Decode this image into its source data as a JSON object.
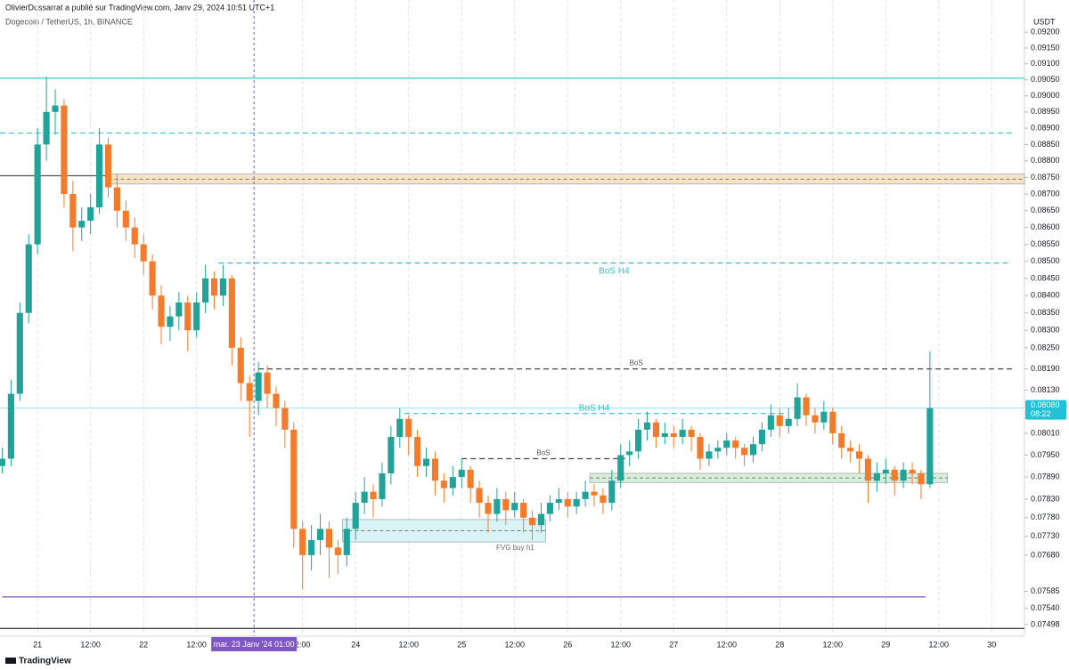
{
  "header": {
    "publisher": "OlivierDussarrat a publié sur TradingView.com, Janv 29, 2024 10:51 UTC+1",
    "symbol": "Dogecoin / TetherUS, 1h, BINANCE",
    "currency": "USDT",
    "brand": "TradingView"
  },
  "chart_data": {
    "type": "candlestick",
    "log": true,
    "xgrid": true,
    "ygrid": false,
    "up_color": "#22a39a",
    "down_color": "#f47b2b",
    "xlim": [
      -8.5,
      223.4
    ],
    "ylim": [
      0.07468,
      0.0926
    ],
    "xticks": [
      {
        "value": 0,
        "label": "21"
      },
      {
        "value": 12,
        "label": "12:00"
      },
      {
        "value": 24,
        "label": "22"
      },
      {
        "value": 36,
        "label": "12:00"
      },
      {
        "value": 60,
        "label": "2:00"
      },
      {
        "value": 72,
        "label": "24"
      },
      {
        "value": 84,
        "label": "12:00"
      },
      {
        "value": 96,
        "label": "25"
      },
      {
        "value": 108,
        "label": "12:00"
      },
      {
        "value": 120,
        "label": "26"
      },
      {
        "value": 132,
        "label": "12:00"
      },
      {
        "value": 144,
        "label": "27"
      },
      {
        "value": 156,
        "label": "12:00"
      },
      {
        "value": 168,
        "label": "28"
      },
      {
        "value": 180,
        "label": "12:00"
      },
      {
        "value": 192,
        "label": "29"
      },
      {
        "value": 204,
        "label": "12:00"
      },
      {
        "value": 216,
        "label": "30"
      }
    ],
    "crosshair": {
      "value": 49,
      "label": "mar. 23 Janv '24   01:00"
    },
    "yticks": [
      {
        "value": 0.092,
        "label": "0.09200"
      },
      {
        "value": 0.0915,
        "label": "0.09150"
      },
      {
        "value": 0.091,
        "label": "0.09100"
      },
      {
        "value": 0.0905,
        "label": "0.09050"
      },
      {
        "value": 0.09,
        "label": "0.09000"
      },
      {
        "value": 0.0895,
        "label": "0.08950"
      },
      {
        "value": 0.089,
        "label": "0.08900"
      },
      {
        "value": 0.0885,
        "label": "0.08850"
      },
      {
        "value": 0.088,
        "label": "0.08800"
      },
      {
        "value": 0.0875,
        "label": "0.08750"
      },
      {
        "value": 0.087,
        "label": "0.08700"
      },
      {
        "value": 0.0865,
        "label": "0.08650"
      },
      {
        "value": 0.086,
        "label": "0.08600"
      },
      {
        "value": 0.0855,
        "label": "0.08550"
      },
      {
        "value": 0.085,
        "label": "0.08500"
      },
      {
        "value": 0.0845,
        "label": "0.08450"
      },
      {
        "value": 0.084,
        "label": "0.08400"
      },
      {
        "value": 0.0835,
        "label": "0.08350"
      },
      {
        "value": 0.083,
        "label": "0.08300"
      },
      {
        "value": 0.0825,
        "label": "0.08250"
      },
      {
        "value": 0.0819,
        "label": "0.08190"
      },
      {
        "value": 0.0813,
        "label": "0.08130"
      },
      {
        "value": 0.0801,
        "label": "0.08010"
      },
      {
        "value": 0.0795,
        "label": "0.07950"
      },
      {
        "value": 0.0789,
        "label": "0.07890"
      },
      {
        "value": 0.0783,
        "label": "0.07830"
      },
      {
        "value": 0.0778,
        "label": "0.07780"
      },
      {
        "value": 0.0773,
        "label": "0.07730"
      },
      {
        "value": 0.0768,
        "label": "0.07680"
      },
      {
        "value": 0.07585,
        "label": "0.07585"
      },
      {
        "value": 0.0754,
        "label": "0.07540"
      },
      {
        "value": 0.07498,
        "label": "0.07498"
      }
    ],
    "last_price": {
      "value": 0.0808,
      "label": "0.08080",
      "countdown": "08:22",
      "color": "#22c1d6"
    },
    "levels": [
      {
        "kind": "line",
        "value": 0.09055,
        "style": "solid",
        "color": "#3cc8d6"
      },
      {
        "kind": "line",
        "value": 0.08885,
        "style": "dashed",
        "color": "#3cc8d6",
        "end": 221
      },
      {
        "kind": "line",
        "value": 0.08755,
        "style": "solid",
        "color": "#555555"
      },
      {
        "kind": "zone",
        "low": 0.0873,
        "high": 0.0876,
        "start": 16,
        "color": "#f5e3c8"
      },
      {
        "kind": "line",
        "value": 0.08495,
        "style": "dashed",
        "color": "#2bbfd4",
        "start": 41,
        "end": 220,
        "label": "BoS H4",
        "label_side": "below"
      },
      {
        "kind": "line",
        "value": 0.0819,
        "style": "dashed",
        "color": "#444444",
        "start": 50,
        "end": 221,
        "label": "BoS",
        "label_side": "above"
      },
      {
        "kind": "line",
        "value": 0.0808,
        "style": "solid",
        "color": "#a8e6ee"
      },
      {
        "kind": "line",
        "value": 0.08065,
        "style": "dashed",
        "color": "#2bbfd4",
        "start": 83,
        "end": 169,
        "label": "BoS H4",
        "label_side": "above"
      },
      {
        "kind": "line",
        "value": 0.0794,
        "style": "dashed",
        "color": "#444444",
        "start": 96,
        "end": 133,
        "label": "BoS",
        "label_side": "above"
      },
      {
        "kind": "zone",
        "low": 0.07715,
        "high": 0.07775,
        "start": 69,
        "end": 115,
        "color": "#d9f3f6",
        "label": "FVG buy h1"
      },
      {
        "kind": "zone",
        "low": 0.07875,
        "high": 0.079,
        "start": 125,
        "end": 206,
        "color": "#d7eedb"
      },
      {
        "kind": "line",
        "value": 0.0757,
        "style": "solid",
        "color": "#7e57c2",
        "start": -8,
        "end": 201
      },
      {
        "kind": "line",
        "value": 0.07488,
        "style": "solid",
        "color": "#444444"
      }
    ],
    "x": [
      -8,
      -6,
      -4,
      -2,
      0,
      2,
      4,
      6,
      8,
      10,
      12,
      14,
      16,
      18,
      20,
      22,
      24,
      26,
      28,
      30,
      32,
      34,
      36,
      38,
      40,
      42,
      44,
      46,
      48,
      50,
      52,
      54,
      56,
      58,
      60,
      62,
      64,
      66,
      68,
      70,
      72,
      74,
      76,
      78,
      80,
      82,
      84,
      86,
      88,
      90,
      92,
      94,
      96,
      98,
      100,
      102,
      104,
      106,
      108,
      110,
      112,
      114,
      116,
      118,
      120,
      122,
      124,
      126,
      128,
      130,
      132,
      134,
      136,
      138,
      140,
      142,
      144,
      146,
      148,
      150,
      152,
      154,
      156,
      158,
      160,
      162,
      164,
      166,
      168,
      170,
      172,
      174,
      176,
      178,
      180,
      182,
      184,
      186,
      188,
      190,
      192,
      194,
      196,
      198,
      200,
      202
    ],
    "ohlc": [
      [
        0.0792,
        0.0797,
        0.079,
        0.0794
      ],
      [
        0.0794,
        0.0816,
        0.0792,
        0.0812
      ],
      [
        0.0812,
        0.0838,
        0.081,
        0.0835
      ],
      [
        0.0835,
        0.0858,
        0.0832,
        0.0855
      ],
      [
        0.0855,
        0.089,
        0.0852,
        0.0885
      ],
      [
        0.0885,
        0.0906,
        0.088,
        0.0895
      ],
      [
        0.0895,
        0.0902,
        0.0888,
        0.0897
      ],
      [
        0.0897,
        0.0899,
        0.0866,
        0.087
      ],
      [
        0.087,
        0.0874,
        0.0853,
        0.086
      ],
      [
        0.086,
        0.0866,
        0.0856,
        0.0862
      ],
      [
        0.0862,
        0.087,
        0.0858,
        0.0866
      ],
      [
        0.0866,
        0.089,
        0.0864,
        0.0885
      ],
      [
        0.0885,
        0.0887,
        0.0869,
        0.0872
      ],
      [
        0.0872,
        0.0876,
        0.086,
        0.0865
      ],
      [
        0.0865,
        0.0868,
        0.0856,
        0.086
      ],
      [
        0.086,
        0.0863,
        0.0851,
        0.0855
      ],
      [
        0.0855,
        0.0858,
        0.0846,
        0.085
      ],
      [
        0.085,
        0.0852,
        0.0836,
        0.084
      ],
      [
        0.084,
        0.0843,
        0.0826,
        0.0831
      ],
      [
        0.0831,
        0.0837,
        0.0827,
        0.0834
      ],
      [
        0.0834,
        0.0841,
        0.083,
        0.0838
      ],
      [
        0.0838,
        0.084,
        0.0824,
        0.083
      ],
      [
        0.083,
        0.0841,
        0.0828,
        0.0838
      ],
      [
        0.0838,
        0.0849,
        0.0835,
        0.0845
      ],
      [
        0.0845,
        0.0847,
        0.0836,
        0.084
      ],
      [
        0.084,
        0.0849,
        0.0837,
        0.0845
      ],
      [
        0.0845,
        0.0846,
        0.082,
        0.0825
      ],
      [
        0.0825,
        0.0828,
        0.081,
        0.0815
      ],
      [
        0.0815,
        0.0817,
        0.08,
        0.081
      ],
      [
        0.081,
        0.0821,
        0.0806,
        0.0818
      ],
      [
        0.0818,
        0.082,
        0.0808,
        0.0812
      ],
      [
        0.0812,
        0.0814,
        0.0803,
        0.0808
      ],
      [
        0.0808,
        0.081,
        0.0797,
        0.0802
      ],
      [
        0.0802,
        0.0804,
        0.077,
        0.0775
      ],
      [
        0.0775,
        0.0777,
        0.0759,
        0.0768
      ],
      [
        0.0768,
        0.0776,
        0.0764,
        0.0772
      ],
      [
        0.0772,
        0.0779,
        0.0768,
        0.0775
      ],
      [
        0.0775,
        0.0777,
        0.0762,
        0.077
      ],
      [
        0.077,
        0.0772,
        0.0763,
        0.0768
      ],
      [
        0.0768,
        0.0778,
        0.0765,
        0.0775
      ],
      [
        0.0775,
        0.0785,
        0.0772,
        0.0782
      ],
      [
        0.0782,
        0.0789,
        0.0779,
        0.0785
      ],
      [
        0.0785,
        0.0787,
        0.0778,
        0.0783
      ],
      [
        0.0783,
        0.0793,
        0.0781,
        0.079
      ],
      [
        0.079,
        0.0803,
        0.0787,
        0.08
      ],
      [
        0.08,
        0.0808,
        0.0797,
        0.0805
      ],
      [
        0.0805,
        0.0806,
        0.0795,
        0.08
      ],
      [
        0.08,
        0.0802,
        0.0789,
        0.0792
      ],
      [
        0.0792,
        0.0797,
        0.0789,
        0.0794
      ],
      [
        0.0794,
        0.0796,
        0.0784,
        0.0788
      ],
      [
        0.0788,
        0.079,
        0.0782,
        0.0786
      ],
      [
        0.0786,
        0.0792,
        0.0784,
        0.0789
      ],
      [
        0.0789,
        0.0794,
        0.0786,
        0.0791
      ],
      [
        0.0791,
        0.0792,
        0.0782,
        0.0786
      ],
      [
        0.0786,
        0.0788,
        0.0778,
        0.0782
      ],
      [
        0.0782,
        0.0784,
        0.0774,
        0.0779
      ],
      [
        0.0779,
        0.0786,
        0.0777,
        0.0783
      ],
      [
        0.0783,
        0.0785,
        0.0776,
        0.078
      ],
      [
        0.078,
        0.0785,
        0.0778,
        0.0782
      ],
      [
        0.0782,
        0.0783,
        0.0774,
        0.0778
      ],
      [
        0.0778,
        0.078,
        0.0772,
        0.0776
      ],
      [
        0.0776,
        0.0782,
        0.0774,
        0.0779
      ],
      [
        0.0779,
        0.0784,
        0.0777,
        0.0782
      ],
      [
        0.0782,
        0.0786,
        0.078,
        0.0783
      ],
      [
        0.0783,
        0.0785,
        0.0778,
        0.0781
      ],
      [
        0.0781,
        0.0785,
        0.0779,
        0.0783
      ],
      [
        0.0783,
        0.0788,
        0.0781,
        0.0785
      ],
      [
        0.0785,
        0.0787,
        0.0781,
        0.0784
      ],
      [
        0.0784,
        0.0786,
        0.0779,
        0.0782
      ],
      [
        0.0782,
        0.0791,
        0.078,
        0.0788
      ],
      [
        0.0788,
        0.0798,
        0.0786,
        0.0795
      ],
      [
        0.0795,
        0.0799,
        0.0792,
        0.0796
      ],
      [
        0.0796,
        0.0805,
        0.0794,
        0.0802
      ],
      [
        0.0802,
        0.0807,
        0.0799,
        0.0804
      ],
      [
        0.0804,
        0.0805,
        0.0797,
        0.08
      ],
      [
        0.08,
        0.0804,
        0.0798,
        0.0801
      ],
      [
        0.0801,
        0.0803,
        0.0797,
        0.08
      ],
      [
        0.08,
        0.0805,
        0.0798,
        0.0802
      ],
      [
        0.0802,
        0.0803,
        0.0796,
        0.08
      ],
      [
        0.08,
        0.0801,
        0.0791,
        0.0794
      ],
      [
        0.0794,
        0.0798,
        0.0792,
        0.0796
      ],
      [
        0.0796,
        0.0799,
        0.0794,
        0.0797
      ],
      [
        0.0797,
        0.0801,
        0.0795,
        0.0799
      ],
      [
        0.0799,
        0.08,
        0.0794,
        0.0797
      ],
      [
        0.0797,
        0.0798,
        0.0792,
        0.0795
      ],
      [
        0.0795,
        0.08,
        0.0793,
        0.0798
      ],
      [
        0.0798,
        0.0804,
        0.0796,
        0.0802
      ],
      [
        0.0802,
        0.0809,
        0.08,
        0.0806
      ],
      [
        0.0806,
        0.0808,
        0.08,
        0.0803
      ],
      [
        0.0803,
        0.0808,
        0.0801,
        0.0805
      ],
      [
        0.0805,
        0.0815,
        0.0803,
        0.0811
      ],
      [
        0.0811,
        0.0812,
        0.0803,
        0.0806
      ],
      [
        0.0806,
        0.0808,
        0.0801,
        0.0804
      ],
      [
        0.0804,
        0.081,
        0.0802,
        0.0807
      ],
      [
        0.0807,
        0.0808,
        0.0798,
        0.0801
      ],
      [
        0.0801,
        0.0803,
        0.0794,
        0.0797
      ],
      [
        0.0797,
        0.0799,
        0.0793,
        0.0796
      ],
      [
        0.0796,
        0.0798,
        0.079,
        0.0794
      ],
      [
        0.0794,
        0.0795,
        0.0782,
        0.0788
      ],
      [
        0.0788,
        0.0793,
        0.0785,
        0.079
      ],
      [
        0.079,
        0.0794,
        0.0787,
        0.0791
      ],
      [
        0.0791,
        0.0792,
        0.0784,
        0.0788
      ],
      [
        0.0788,
        0.0793,
        0.0786,
        0.0791
      ],
      [
        0.0791,
        0.0793,
        0.0787,
        0.079
      ],
      [
        0.079,
        0.0791,
        0.0783,
        0.0787
      ],
      [
        0.0787,
        0.0824,
        0.0786,
        0.0808
      ]
    ]
  }
}
